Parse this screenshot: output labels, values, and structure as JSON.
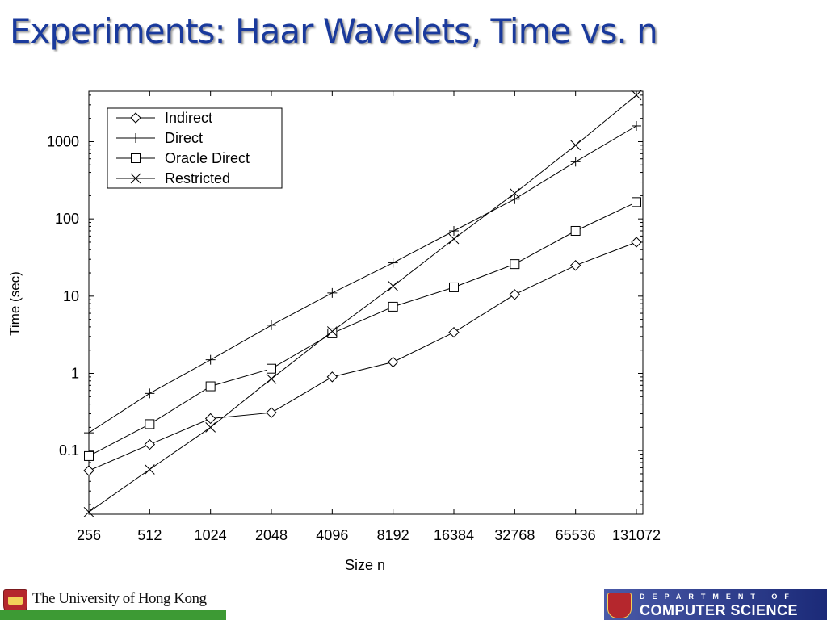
{
  "slide": {
    "title": "Experiments: Haar Wavelets, Time vs. n"
  },
  "chart_data": {
    "type": "line",
    "title": "",
    "xlabel": "Size n",
    "ylabel": "Time (sec)",
    "x_scale": "log2",
    "y_scale": "log10",
    "x": [
      256,
      512,
      1024,
      2048,
      4096,
      8192,
      16384,
      32768,
      65536,
      131072
    ],
    "xticks": [
      "256",
      "512",
      "1024",
      "2048",
      "4096",
      "8192",
      "16384",
      "32768",
      "65536",
      "131072"
    ],
    "yticks": [
      {
        "value": 0.1,
        "label": "0.1"
      },
      {
        "value": 1,
        "label": "1"
      },
      {
        "value": 10,
        "label": "10"
      },
      {
        "value": 100,
        "label": "100"
      },
      {
        "value": 1000,
        "label": "1000"
      }
    ],
    "xlim": [
      256,
      131072
    ],
    "ylim": [
      0.015,
      4500
    ],
    "grid": false,
    "legend_position": "top-left",
    "series": [
      {
        "name": "Indirect",
        "marker": "diamond",
        "values": [
          0.055,
          0.12,
          0.26,
          0.31,
          0.9,
          1.4,
          3.4,
          10.5,
          25,
          50
        ]
      },
      {
        "name": "Direct",
        "marker": "plus",
        "values": [
          0.17,
          0.55,
          1.5,
          4.2,
          11,
          27,
          70,
          180,
          550,
          1600
        ]
      },
      {
        "name": "Oracle Direct",
        "marker": "square",
        "values": [
          0.085,
          0.22,
          0.68,
          1.15,
          3.3,
          7.3,
          13,
          26,
          70,
          165
        ]
      },
      {
        "name": "Restricted",
        "marker": "cross",
        "values": [
          0.016,
          0.057,
          0.2,
          0.85,
          3.5,
          13.5,
          55,
          215,
          900,
          4000
        ]
      }
    ]
  },
  "footer": {
    "university": "The University of Hong Kong",
    "dept_line1": "DEPARTMENT OF",
    "dept_line2": "COMPUTER SCIENCE"
  }
}
